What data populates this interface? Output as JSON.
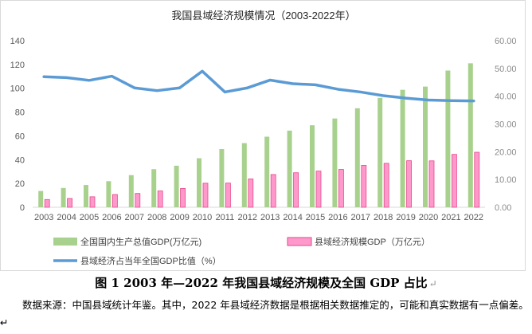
{
  "chart_data": {
    "type": "bar",
    "title": "我国县域经济规模情况（2003-2022年）",
    "categories": [
      "2003",
      "2004",
      "2005",
      "2006",
      "2007",
      "2008",
      "2009",
      "2010",
      "2011",
      "2012",
      "2013",
      "2014",
      "2015",
      "2016",
      "2017",
      "2018",
      "2019",
      "2020",
      "2021",
      "2022"
    ],
    "series": [
      {
        "name": "全国国内生产总值GDP(万亿元)",
        "type": "bar",
        "axis": "left",
        "color": "#a9d18e",
        "values": [
          13.7,
          16.2,
          18.7,
          21.9,
          27.0,
          32.0,
          34.9,
          41.2,
          48.9,
          53.9,
          59.3,
          64.4,
          68.9,
          74.6,
          83.2,
          91.9,
          98.7,
          101.4,
          114.9,
          121.0
        ]
      },
      {
        "name": "县域经济规模GDP（万亿元）",
        "type": "bar",
        "axis": "left",
        "color": "#ff99cc",
        "values": [
          6.5,
          7.4,
          8.8,
          10.7,
          11.6,
          13.7,
          15.8,
          20.2,
          20.3,
          23.8,
          27.5,
          29.0,
          30.4,
          31.8,
          35.2,
          36.9,
          39.1,
          39.0,
          44.4,
          46.2
        ]
      },
      {
        "name": "县域经济占当年全国GDP比值（%）",
        "type": "line",
        "axis": "right",
        "color": "#5b9bd5",
        "values": [
          47.0,
          46.7,
          45.7,
          47.2,
          43.0,
          42.0,
          43.0,
          49.0,
          41.5,
          43.0,
          45.8,
          44.5,
          44.1,
          42.5,
          41.5,
          40.2,
          39.3,
          38.6,
          38.4,
          38.3
        ]
      }
    ],
    "ylim": [
      0,
      140
    ],
    "yticks": [
      0,
      20,
      40,
      60,
      80,
      100,
      120,
      140
    ],
    "y2lim": [
      0,
      60
    ],
    "y2ticks": [
      "0.00",
      "10.00",
      "20.00",
      "30.00",
      "40.00",
      "50.00",
      "60.00"
    ],
    "grid": false,
    "legend": "bottom"
  },
  "caption": "图 1 2003 年—2022 年我国县域经济规模及全国 GDP 占比",
  "caption_mark": "↵",
  "note": "数据来源：中国县域统计年鉴。其中，2022 年县域经济数据是根据相关数据推定的，可能和真实数据有一点偏差。↵"
}
